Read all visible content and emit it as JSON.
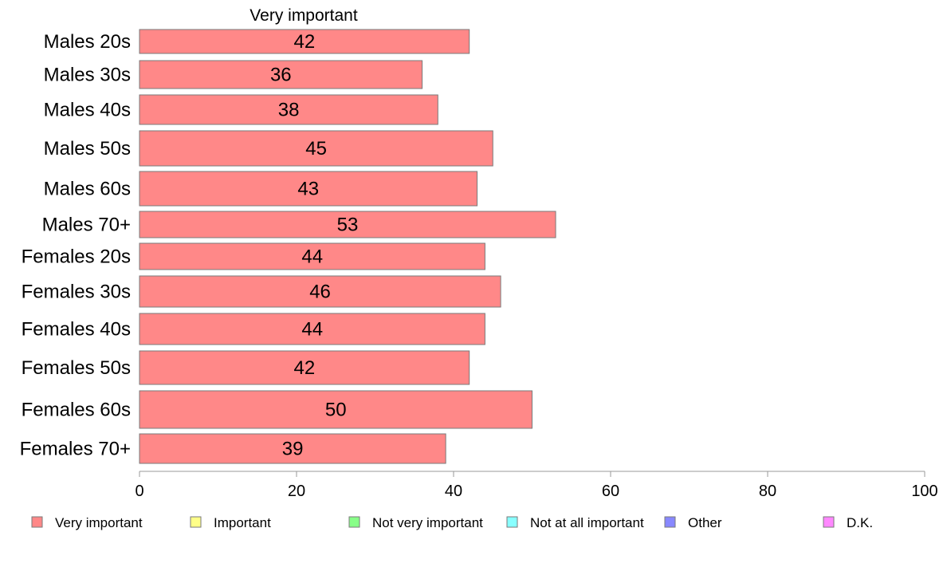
{
  "chart_data": {
    "type": "bar",
    "orientation": "horizontal",
    "column_title": "Very important",
    "categories": [
      "Males 20s",
      "Males 30s",
      "Males 40s",
      "Males 50s",
      "Males 60s",
      "Males 70+",
      "Females 20s",
      "Females 30s",
      "Females 40s",
      "Females 50s",
      "Females 60s",
      "Females 70+"
    ],
    "series": [
      {
        "name": "Very important",
        "color": "#ff8888",
        "values": [
          42,
          36,
          38,
          45,
          43,
          53,
          44,
          46,
          44,
          42,
          50,
          39
        ]
      }
    ],
    "xlim": [
      0,
      100
    ],
    "xticks": [
      0,
      20,
      40,
      60,
      80,
      100
    ],
    "grid": false,
    "legend_position": "bottom",
    "legend": [
      {
        "label": "Very important",
        "color": "#ff8888"
      },
      {
        "label": "Important",
        "color": "#ffff88"
      },
      {
        "label": "Not very important",
        "color": "#88ff88"
      },
      {
        "label": "Not at all important",
        "color": "#88ffff"
      },
      {
        "label": "Other",
        "color": "#8888ff"
      },
      {
        "label": "D.K.",
        "color": "#ff88ff"
      }
    ]
  }
}
